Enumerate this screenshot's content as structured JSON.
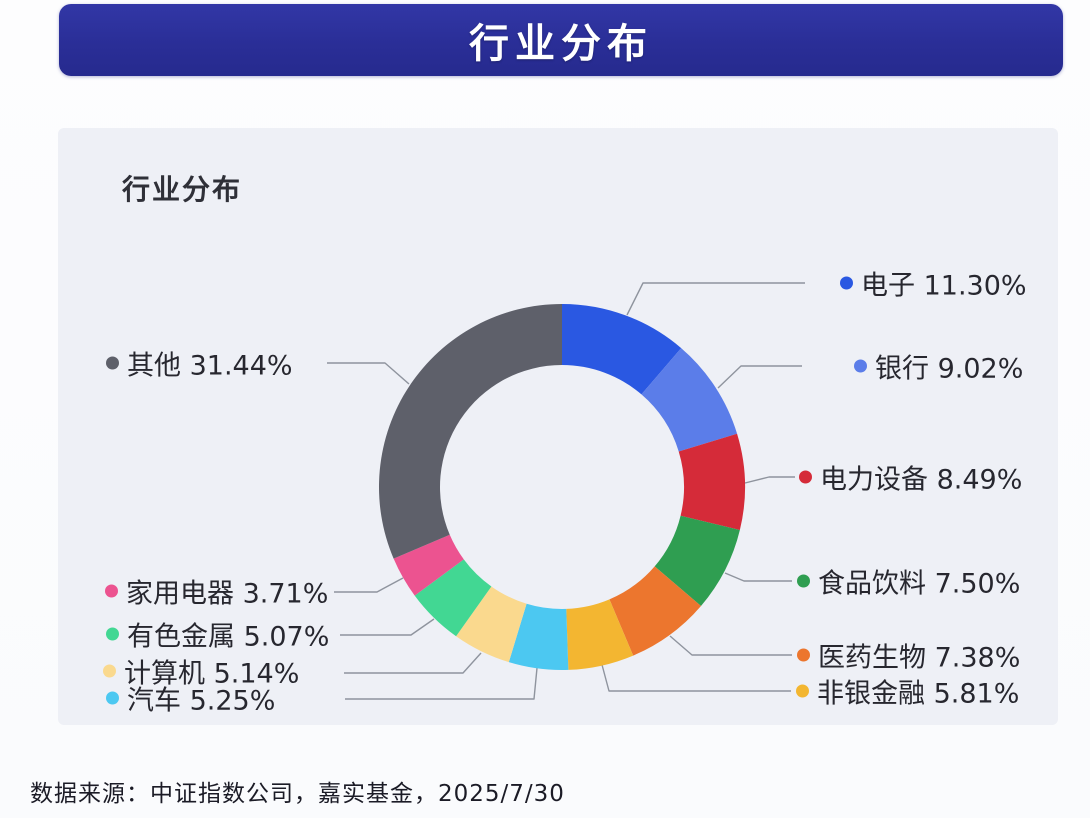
{
  "header": {
    "title": "行业分布",
    "bg_color": "#2a2e97",
    "text_color": "#ffffff"
  },
  "chart": {
    "title": "行业分布"
  },
  "chart_data": {
    "type": "pie",
    "subtype": "donut",
    "title": "行业分布",
    "unit": "%",
    "start_angle": "top",
    "direction": "clockwise",
    "legend_position": "callout-labels",
    "slices": [
      {
        "label": "电子",
        "value": 11.3,
        "display": "11.30%",
        "color": "#2a58e2"
      },
      {
        "label": "银行",
        "value": 9.02,
        "display": "9.02%",
        "color": "#5b7de9"
      },
      {
        "label": "电力设备",
        "value": 8.49,
        "display": "8.49%",
        "color": "#d52b39"
      },
      {
        "label": "食品饮料",
        "value": 7.5,
        "display": "7.50%",
        "color": "#2f9e51"
      },
      {
        "label": "医药生物",
        "value": 7.38,
        "display": "7.38%",
        "color": "#ec762e"
      },
      {
        "label": "非银金融",
        "value": 5.81,
        "display": "5.81%",
        "color": "#f3b631"
      },
      {
        "label": "汽车",
        "value": 5.25,
        "display": "5.25%",
        "color": "#4cc8f1"
      },
      {
        "label": "计算机",
        "value": 5.14,
        "display": "5.14%",
        "color": "#fad98e"
      },
      {
        "label": "有色金属",
        "value": 5.07,
        "display": "5.07%",
        "color": "#42d793"
      },
      {
        "label": "家用电器",
        "value": 3.71,
        "display": "3.71%",
        "color": "#ec5390"
      },
      {
        "label": "其他",
        "value": 31.44,
        "display": "31.44%",
        "color": "#5e606a"
      }
    ]
  },
  "footer": {
    "source_text": "数据来源：中证指数公司，嘉实基金，2025/7/30"
  }
}
